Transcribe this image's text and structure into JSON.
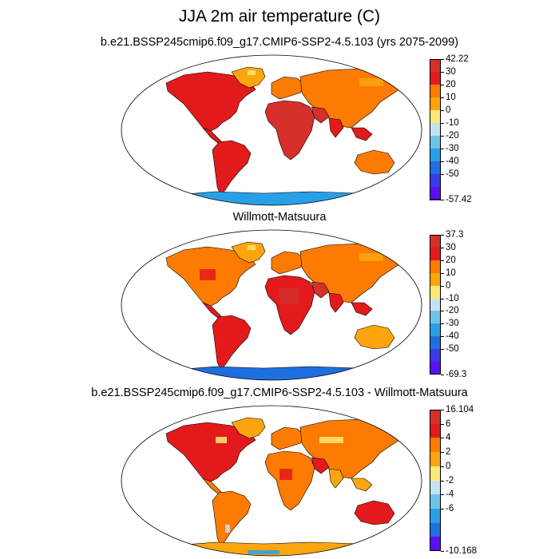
{
  "title": "JJA 2m air temperature (C)",
  "panels": [
    {
      "subtitle": "b.e21.BSSP245cmip6.f09_g17.CMIP6-SSP2-4.5.103 (yrs 2075-2099)",
      "colorbar": {
        "labels": [
          "42.22",
          "30",
          "20",
          "10",
          "0",
          "-10",
          "-20",
          "-30",
          "-40",
          "-50",
          "-57.42"
        ],
        "colors": [
          "#d7302a",
          "#e31a1c",
          "#fc7b00",
          "#fda50f",
          "#ffe877",
          "#c4e2f0",
          "#6ec3ea",
          "#28a0e8",
          "#1f6fe0",
          "#3a3ae8",
          "#5a10f0"
        ],
        "max": "42.22",
        "min": "-57.42"
      }
    },
    {
      "subtitle": "Willmott-Matsuura",
      "colorbar": {
        "labels": [
          "37.3",
          "30",
          "20",
          "10",
          "0",
          "-10",
          "-20",
          "-30",
          "-40",
          "-50",
          "-69.3"
        ],
        "colors": [
          "#d7302a",
          "#e31a1c",
          "#fc7b00",
          "#fda50f",
          "#ffe877",
          "#c4e2f0",
          "#6ec3ea",
          "#28a0e8",
          "#1f6fe0",
          "#3a3ae8",
          "#5a10f0"
        ],
        "max": "37.3",
        "min": "-69.3"
      }
    },
    {
      "subtitle": "b.e21.BSSP245cmip6.f09_g17.CMIP6-SSP2-4.5.103 - Willmott-Matsuura",
      "colorbar": {
        "labels": [
          "16.104",
          "6",
          "4",
          "2",
          "0",
          "-2",
          "-4",
          "-6",
          "-10.168"
        ],
        "colors": [
          "#d7302a",
          "#e31a1c",
          "#fc7b00",
          "#fda50f",
          "#ffe877",
          "#c4e2f0",
          "#6ec3ea",
          "#28a0e8",
          "#1f6fe0",
          "#5a10f0"
        ],
        "max": "16.104",
        "min": "-10.168"
      }
    }
  ]
}
